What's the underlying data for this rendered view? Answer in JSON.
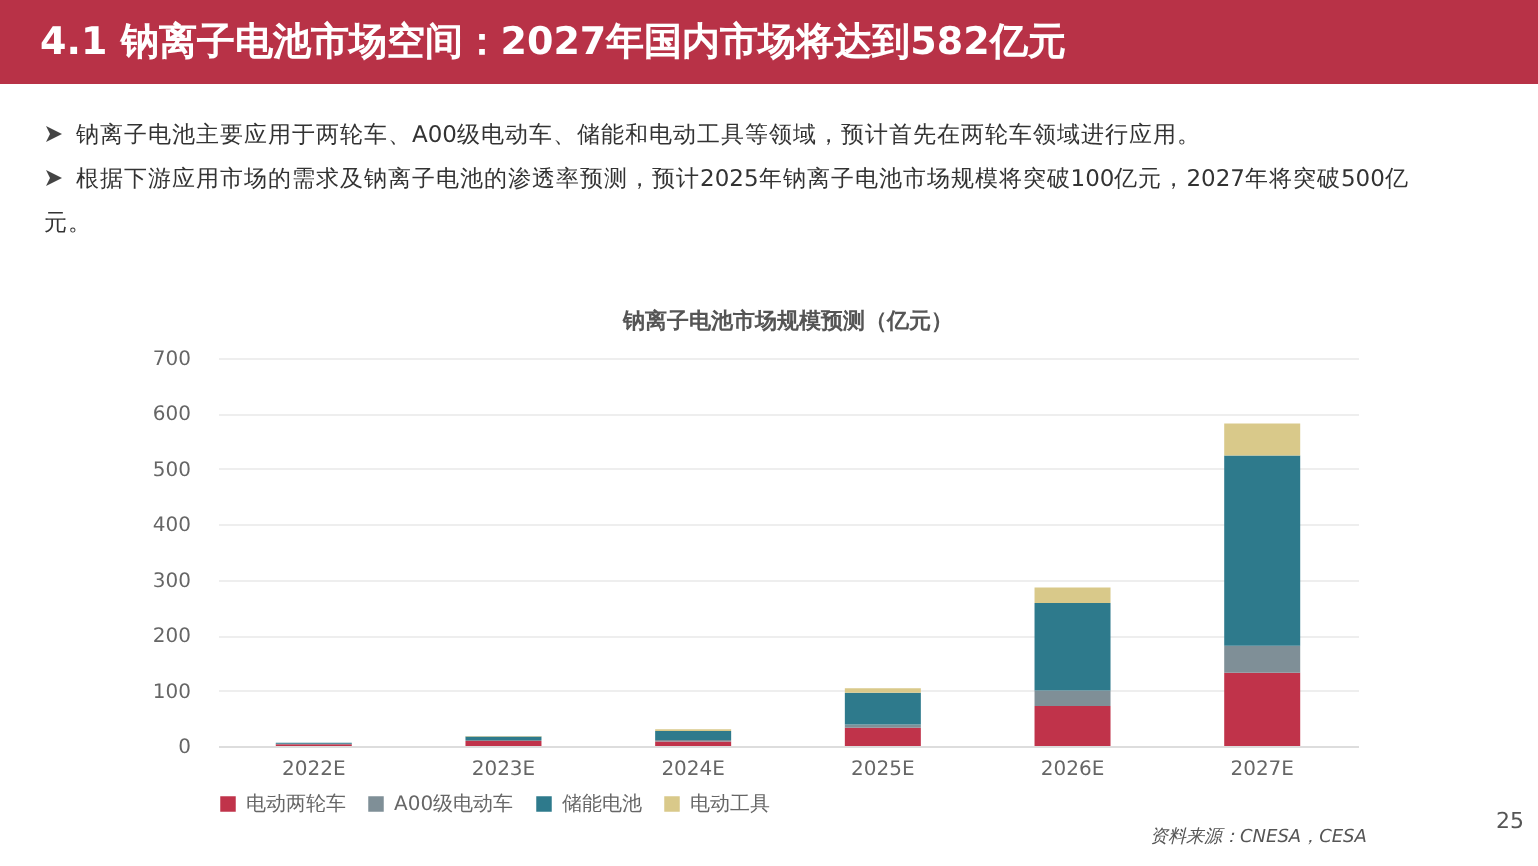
{
  "chart_data": {
    "type": "bar",
    "title": "钠离子电池市场规模预测（亿元）",
    "stacked": true,
    "categories": [
      "2022E",
      "2023E",
      "2024E",
      "2025E",
      "2026E",
      "2027E"
    ],
    "series": [
      {
        "name": "电动两轮车",
        "color": "#c0334a",
        "values": [
          3,
          9,
          8,
          33,
          72,
          132
        ]
      },
      {
        "name": "A00级电动车",
        "color": "#7f8f97",
        "values": [
          1,
          2,
          3,
          6,
          28,
          49
        ]
      },
      {
        "name": "储能电池",
        "color": "#2e7a8c",
        "values": [
          2,
          6,
          16,
          57,
          158,
          343
        ]
      },
      {
        "name": "电动工具",
        "color": "#d9c98a",
        "values": [
          0,
          1,
          3,
          8,
          28,
          58
        ]
      }
    ],
    "ylim": [
      0,
      700
    ],
    "yticks": [
      0,
      100,
      200,
      300,
      400,
      500,
      600,
      700
    ],
    "grid": "y",
    "legend": "bottom",
    "annotations": [
      "4.1 钠离子电池市场空间：2027年国内市场将达到582亿元",
      "钠离子电池主要应用于两轮车、A00级电动车、储能和电动工具等领域，预计首先在两轮车领域进行应用。",
      "根据下游应用市场的需求及钠离子电池的渗透率预测，预计2025年钠离子电池市场规模将突破100亿元，2027年将突破500亿元。",
      "资料来源：CNESA，CESA",
      "25"
    ]
  }
}
